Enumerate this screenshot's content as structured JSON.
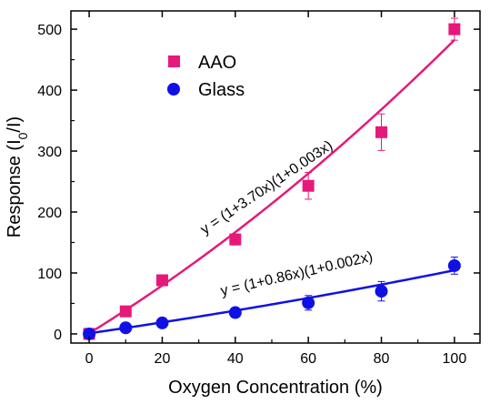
{
  "chart_data": {
    "type": "scatter",
    "title": "",
    "xlabel": "Oxygen Concentration (%)",
    "ylabel_main": "Response (I",
    "ylabel_sub": "0",
    "ylabel_tail": "/I)",
    "xlim": [
      -5,
      107
    ],
    "ylim": [
      -15,
      530
    ],
    "x_ticks": [
      0,
      20,
      40,
      60,
      80,
      100
    ],
    "x_tick_labels": [
      "0",
      "20",
      "40",
      "60",
      "80",
      "100"
    ],
    "y_ticks": [
      0,
      100,
      200,
      300,
      400,
      500
    ],
    "y_tick_labels": [
      "0",
      "100",
      "200",
      "300",
      "400",
      "500"
    ],
    "grid": false,
    "legend_position": "top-left",
    "series": [
      {
        "name": "AAO",
        "marker": "square",
        "color": "#e6197a",
        "x": [
          0,
          10,
          20,
          40,
          60,
          80,
          100
        ],
        "y": [
          0,
          37,
          88,
          155,
          243,
          331,
          500
        ],
        "yerr": [
          2,
          3,
          4,
          9,
          22,
          30,
          18
        ],
        "fit": {
          "a": 3.7,
          "b": 0.003
        }
      },
      {
        "name": "Glass",
        "marker": "circle",
        "color": "#1010e6",
        "x": [
          0,
          10,
          20,
          40,
          60,
          80,
          100
        ],
        "y": [
          0,
          10,
          18,
          35,
          51,
          70,
          112
        ],
        "yerr": [
          2,
          2,
          3,
          4,
          12,
          16,
          14
        ],
        "fit": {
          "a": 0.86,
          "b": 0.002
        }
      }
    ],
    "annotations": [
      {
        "text": "y = (1+3.70x)(1+0.003x)",
        "series": 0
      },
      {
        "text": "y = (1+0.86x)(1+0.002x)",
        "series": 1
      }
    ]
  }
}
